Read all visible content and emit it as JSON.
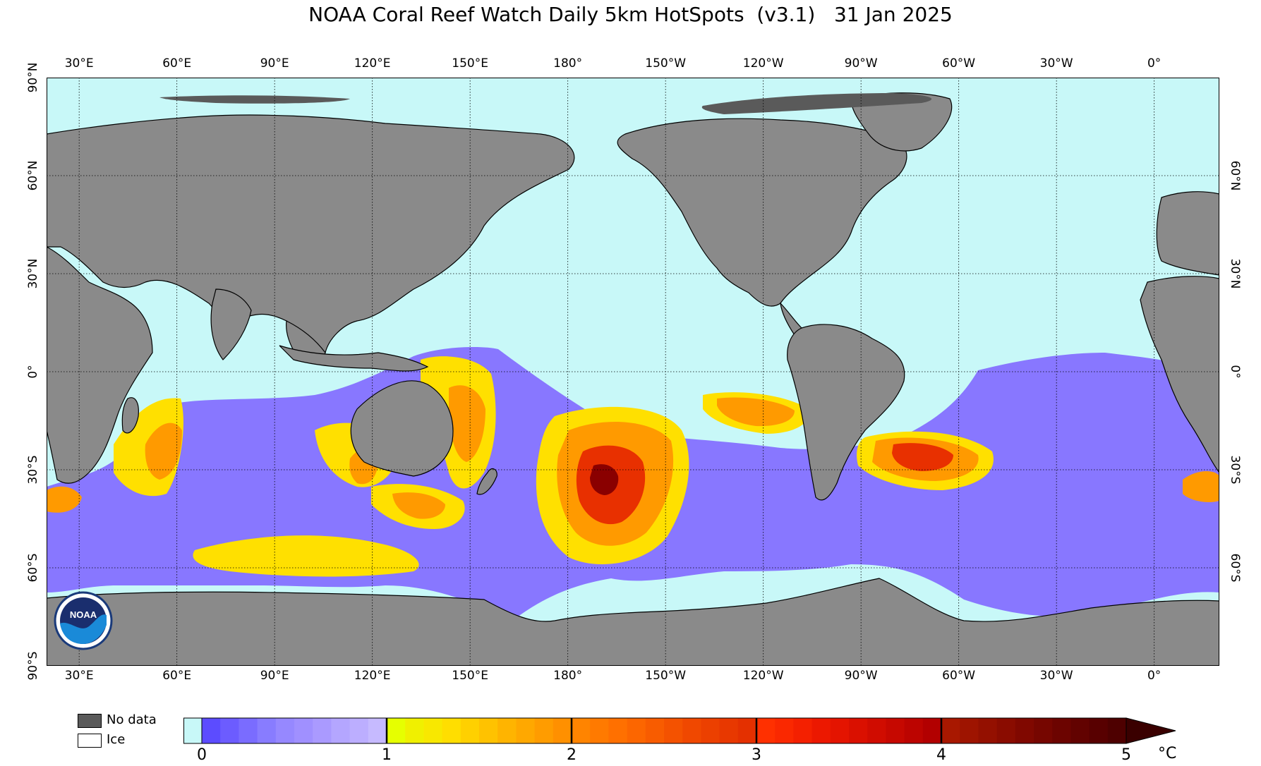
{
  "title": "NOAA Coral Reef Watch Daily 5km HotSpots  (v3.1)   31 Jan 2025",
  "map": {
    "lon_start_east": 20,
    "lon_span": 360,
    "lat_top": 90,
    "lat_bottom": -90,
    "grid": true,
    "colors": {
      "ocean": "#c8f8f8",
      "land": "#8a8a8a",
      "nodata": "#5a5a5a",
      "purple": "#8877ff",
      "yellow": "#ffe000",
      "orange": "#ff9a00",
      "red": "#e83000",
      "darkred": "#8a0000"
    },
    "lon_ticks": [
      {
        "lon": 30,
        "label": "30°E"
      },
      {
        "lon": 60,
        "label": "60°E"
      },
      {
        "lon": 90,
        "label": "90°E"
      },
      {
        "lon": 120,
        "label": "120°E"
      },
      {
        "lon": 150,
        "label": "150°E"
      },
      {
        "lon": 180,
        "label": "180°"
      },
      {
        "lon": 210,
        "label": "150°W"
      },
      {
        "lon": 240,
        "label": "120°W"
      },
      {
        "lon": 270,
        "label": "90°W"
      },
      {
        "lon": 300,
        "label": "60°W"
      },
      {
        "lon": 330,
        "label": "30°W"
      },
      {
        "lon": 360,
        "label": "0°"
      }
    ],
    "lat_ticks_left": [
      {
        "lat": 90,
        "label": "90°N"
      },
      {
        "lat": 60,
        "label": "60°N"
      },
      {
        "lat": 30,
        "label": "30°N"
      },
      {
        "lat": 0,
        "label": "0°"
      },
      {
        "lat": -30,
        "label": "30°S"
      },
      {
        "lat": -60,
        "label": "60°S"
      },
      {
        "lat": -90,
        "label": "90°S"
      }
    ],
    "lat_ticks_right": [
      {
        "lat": 60,
        "label": "60°N"
      },
      {
        "lat": 30,
        "label": "30°N"
      },
      {
        "lat": 0,
        "label": "0°"
      },
      {
        "lat": -30,
        "label": "30°S"
      },
      {
        "lat": -60,
        "label": "60°S"
      }
    ],
    "logo_icon": "noaa-logo-icon",
    "logo_text": "NOAA"
  },
  "legend": {
    "nodata_label": "No data",
    "ice_label": "Ice",
    "colorbar_ticks": [
      "0",
      "1",
      "2",
      "3",
      "4",
      "5"
    ],
    "unit": "°C",
    "stops": [
      "#c8f8f8",
      "#5c4cff",
      "#6c5cff",
      "#7a6cff",
      "#887cff",
      "#9688ff",
      "#a090ff",
      "#aa9aff",
      "#b4a6ff",
      "#bcaeff",
      "#c6baff",
      "#e6ff00",
      "#f0f000",
      "#f8e800",
      "#ffde00",
      "#ffd000",
      "#ffc200",
      "#ffb400",
      "#ffa800",
      "#ff9c00",
      "#ff9000",
      "#ff8400",
      "#ff7a00",
      "#ff7000",
      "#fc6600",
      "#f85c00",
      "#f45200",
      "#f04800",
      "#ec4000",
      "#e83800",
      "#e43000",
      "#ff3000",
      "#fa2800",
      "#f42000",
      "#ec1800",
      "#e41400",
      "#da1000",
      "#d00c00",
      "#c60800",
      "#bc0400",
      "#b20000",
      "#a81800",
      "#9e1400",
      "#941000",
      "#8a0c00",
      "#800800",
      "#760600",
      "#6c0400",
      "#620200",
      "#580000",
      "#4e0000"
    ]
  }
}
